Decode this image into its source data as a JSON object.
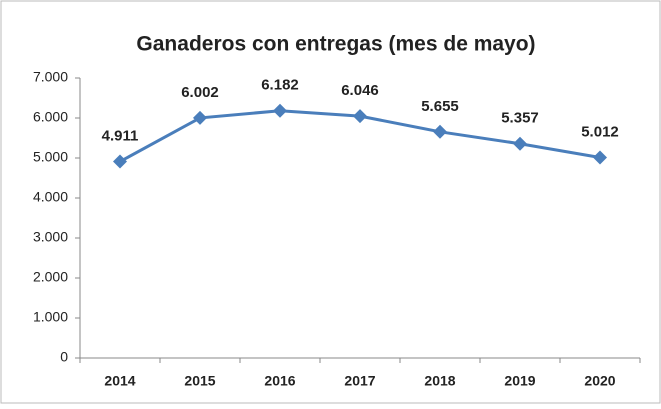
{
  "chart_data": {
    "type": "line",
    "title": "Ganaderos con entregas (mes de mayo)",
    "categories": [
      "2014",
      "2015",
      "2016",
      "2017",
      "2018",
      "2019",
      "2020"
    ],
    "series": [
      {
        "name": null,
        "color": "#4a7ebb",
        "values": [
          4911,
          6002,
          6182,
          6046,
          5655,
          5357,
          5012
        ],
        "value_labels": [
          "4.911",
          "6.002",
          "6.182",
          "6.046",
          "5.655",
          "5.357",
          "5.012"
        ]
      }
    ],
    "ylim": [
      0,
      7000
    ],
    "yticks": [
      0,
      {
        "value": 1000,
        "label": "1.000"
      },
      {
        "value": 2000,
        "label": "2.000"
      },
      {
        "value": 3000,
        "label": "3.000"
      },
      {
        "value": 4000,
        "label": "4.000"
      },
      {
        "value": 5000,
        "label": "5.000"
      },
      {
        "value": 6000,
        "label": "6.000"
      },
      {
        "value": 7000,
        "label": "7.000"
      }
    ],
    "grid": false
  }
}
